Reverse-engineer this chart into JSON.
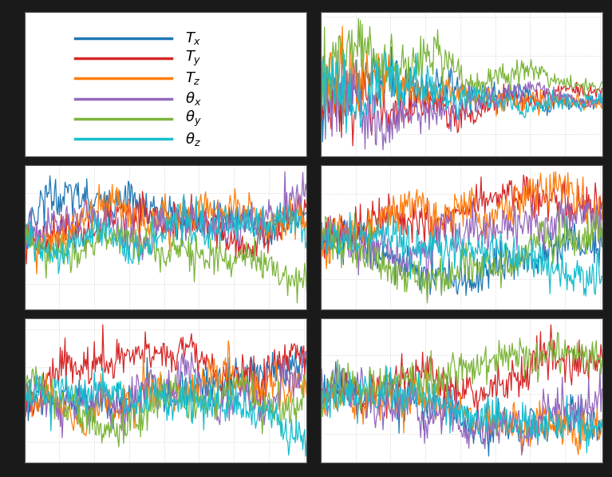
{
  "colors": [
    "#1f77b4",
    "#d62728",
    "#ff7f0e",
    "#9467bd",
    "#7cb53c",
    "#17becf"
  ],
  "labels": [
    "$T_x$",
    "$T_y$",
    "$T_z$",
    "$\\theta_x$",
    "$\\theta_y$",
    "$\\theta_z$"
  ],
  "n_series": 6,
  "n_points": 300,
  "background_color": "#ffffff",
  "grid_color": "#aaaaaa",
  "fig_bg": "#1a1a1a",
  "linewidth": 0.9
}
